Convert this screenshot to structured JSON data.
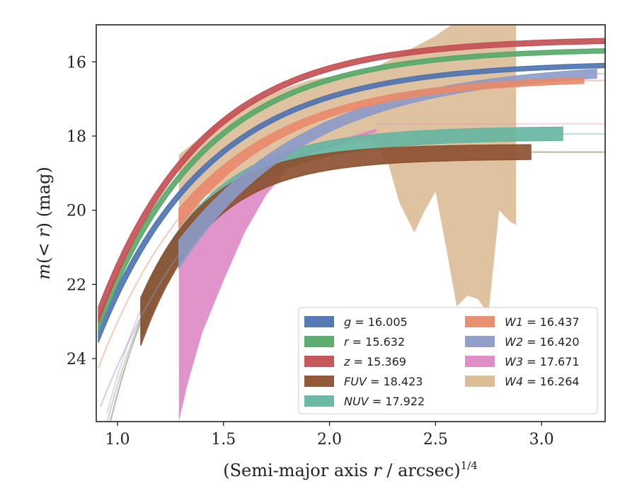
{
  "chart_data": {
    "type": "line",
    "xlabel": "(Semi-major axis r / arcsec)",
    "xlabel_parts": {
      "pre": "(Semi-major axis ",
      "var": "r",
      "post": " / arcsec)",
      "sup": "1/4"
    },
    "ylabel_parts": {
      "m": "m",
      "open": "(",
      "lt": "< ",
      "r": "r",
      "close": ")",
      "unit": " (mag)"
    },
    "xlim": [
      0.9,
      3.3
    ],
    "ylim": [
      25.7,
      15.0
    ],
    "y_inverted": true,
    "x_ticks": [
      1.0,
      1.5,
      2.0,
      2.5,
      3.0
    ],
    "x_tick_labels": [
      "1.0",
      "1.5",
      "2.0",
      "2.5",
      "3.0"
    ],
    "y_ticks": [
      16,
      18,
      20,
      22,
      24
    ],
    "y_tick_labels": [
      "16",
      "18",
      "20",
      "22",
      "24"
    ],
    "legend_position": "lower-right",
    "series": [
      {
        "key": "g",
        "name": "g",
        "value": "= 16.005",
        "color": "#4c72b0",
        "width": 0.06,
        "x0": 0.91,
        "x1": 3.3,
        "asym": 16.02,
        "delta": 7.5,
        "k": 1.9,
        "ext_x": 3.3
      },
      {
        "key": "r",
        "name": "r",
        "value": "= 15.632",
        "color": "#55a868",
        "width": 0.06,
        "x0": 0.91,
        "x1": 3.3,
        "asym": 15.64,
        "delta": 7.6,
        "k": 2.0,
        "ext_x": 3.3
      },
      {
        "key": "z",
        "name": "z",
        "value": "= 15.369",
        "color": "#c44e52",
        "width": 0.07,
        "x0": 0.91,
        "x1": 3.3,
        "asym": 15.38,
        "delta": 7.6,
        "k": 2.05,
        "ext_x": 3.3
      },
      {
        "key": "fuv",
        "name": "FUV",
        "value": "= 18.423",
        "color": "#8c4f2d",
        "width": 0.2,
        "x0": 1.11,
        "x1": 2.95,
        "asym": 18.42,
        "delta": 9.0,
        "k": 3.2,
        "ext_x": 3.3,
        "faint_from": 0.93
      },
      {
        "key": "nuv",
        "name": "NUV",
        "value": "= 17.922",
        "color": "#64b5a0",
        "width": 0.18,
        "x0": 1.11,
        "x1": 3.1,
        "asym": 17.92,
        "delta": 9.0,
        "k": 2.8,
        "ext_x": 3.3,
        "faint_from": 0.93
      },
      {
        "key": "w1",
        "name": "W1",
        "value": "= 16.437",
        "color": "#e8896a",
        "width": 0.08,
        "x0": 1.29,
        "x1": 3.2,
        "asym": 16.4,
        "delta": 8.0,
        "k": 1.9,
        "ext_x": 3.3,
        "faint_from": 0.91
      },
      {
        "key": "w2",
        "name": "W2",
        "value": "= 16.420",
        "color": "#8c9ac8",
        "width": 0.12,
        "x0": 1.29,
        "x1": 3.26,
        "asym": 16.1,
        "delta": 9.5,
        "k": 1.6,
        "ext_x": 3.3,
        "faint_from": 0.92
      },
      {
        "key": "w3",
        "name": "W3",
        "value": "= 17.671",
        "color": "#dd88c4",
        "x0": 1.29,
        "x1": 2.22,
        "ext_x": 3.3,
        "asym": 17.67,
        "faint_from": 0.95,
        "band_lower": [
          [
            1.29,
            25.7
          ],
          [
            1.33,
            24.7
          ],
          [
            1.4,
            23.3
          ],
          [
            1.5,
            21.9
          ],
          [
            1.6,
            20.6
          ],
          [
            1.7,
            19.6
          ],
          [
            1.8,
            18.9
          ],
          [
            1.9,
            18.5
          ],
          [
            2.0,
            18.3
          ],
          [
            2.1,
            18.1
          ],
          [
            2.22,
            17.9
          ]
        ],
        "band_upper": [
          [
            1.29,
            21.6
          ],
          [
            1.35,
            20.6
          ],
          [
            1.45,
            19.9
          ],
          [
            1.55,
            19.4
          ],
          [
            1.65,
            19.1
          ],
          [
            1.75,
            18.8
          ],
          [
            1.85,
            18.5
          ],
          [
            1.95,
            18.3
          ],
          [
            2.05,
            18.1
          ],
          [
            2.22,
            17.8
          ]
        ]
      },
      {
        "key": "w4",
        "name": "W4",
        "value": "= 16.264",
        "color": "#d9b990",
        "x0": 1.29,
        "x1": 2.88,
        "ext_x": 3.3,
        "band_lower": [
          [
            1.29,
            21.6
          ],
          [
            1.4,
            19.6
          ],
          [
            1.5,
            19.5
          ],
          [
            1.6,
            19.2
          ],
          [
            1.7,
            19.0
          ],
          [
            1.8,
            18.8
          ],
          [
            1.9,
            18.5
          ],
          [
            2.0,
            18.3
          ],
          [
            2.1,
            18.2
          ],
          [
            2.2,
            18.1
          ],
          [
            2.28,
            18.8
          ],
          [
            2.33,
            19.8
          ],
          [
            2.4,
            20.6
          ],
          [
            2.45,
            20.0
          ],
          [
            2.5,
            19.5
          ],
          [
            2.55,
            21.0
          ],
          [
            2.6,
            22.6
          ],
          [
            2.65,
            22.3
          ],
          [
            2.7,
            22.4
          ],
          [
            2.75,
            22.8
          ],
          [
            2.8,
            20.0
          ],
          [
            2.85,
            20.3
          ],
          [
            2.88,
            20.4
          ]
        ],
        "band_upper": [
          [
            1.29,
            18.5
          ],
          [
            1.4,
            18.0
          ],
          [
            1.5,
            17.5
          ],
          [
            1.6,
            17.2
          ],
          [
            1.7,
            16.9
          ],
          [
            1.8,
            16.7
          ],
          [
            1.9,
            16.5
          ],
          [
            2.0,
            16.4
          ],
          [
            2.1,
            16.3
          ],
          [
            2.2,
            16.2
          ],
          [
            2.3,
            15.9
          ],
          [
            2.4,
            15.6
          ],
          [
            2.5,
            15.3
          ],
          [
            2.55,
            15.1
          ],
          [
            2.6,
            14.9
          ],
          [
            2.7,
            14.9
          ],
          [
            2.8,
            14.9
          ],
          [
            2.88,
            14.9
          ]
        ]
      }
    ]
  }
}
